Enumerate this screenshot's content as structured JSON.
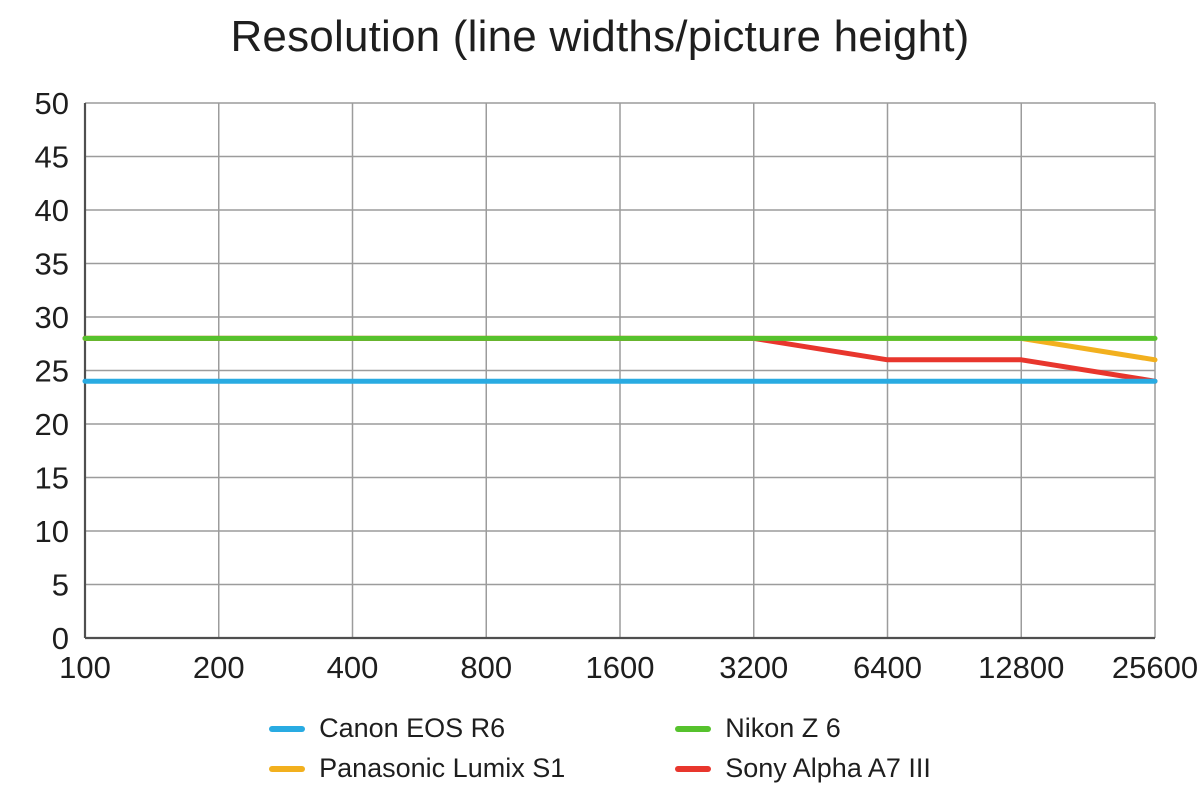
{
  "chart_data": {
    "type": "line",
    "title": "Resolution (line widths/picture height)",
    "xlabel": "",
    "ylabel": "",
    "x_scale": "log2-categorical",
    "categories": [
      "100",
      "200",
      "400",
      "800",
      "1600",
      "3200",
      "6400",
      "12800",
      "25600"
    ],
    "y_ticks": [
      0,
      5,
      10,
      15,
      20,
      25,
      30,
      35,
      40,
      45,
      50
    ],
    "ylim": [
      0,
      50
    ],
    "grid": true,
    "legend_position": "bottom",
    "series": [
      {
        "name": "Canon EOS R6",
        "color": "#29ABE2",
        "values": [
          24,
          24,
          24,
          24,
          24,
          24,
          24,
          24,
          24
        ]
      },
      {
        "name": "Nikon Z 6",
        "color": "#56C22D",
        "values": [
          28,
          28,
          28,
          28,
          28,
          28,
          28,
          28,
          28
        ]
      },
      {
        "name": "Panasonic Lumix S1",
        "color": "#F2B01E",
        "values": [
          28,
          28,
          28,
          28,
          28,
          28,
          28,
          28,
          26
        ]
      },
      {
        "name": "Sony Alpha A7 III",
        "color": "#E8362D",
        "values": [
          28,
          28,
          28,
          28,
          28,
          28,
          26,
          26,
          24
        ]
      }
    ],
    "draw_order": [
      2,
      3,
      1,
      0
    ],
    "colors": {
      "grid": "#9C9C9C",
      "axis": "#4F4F4F",
      "text": "#1E1E1E",
      "background": "#FFFFFF"
    }
  }
}
